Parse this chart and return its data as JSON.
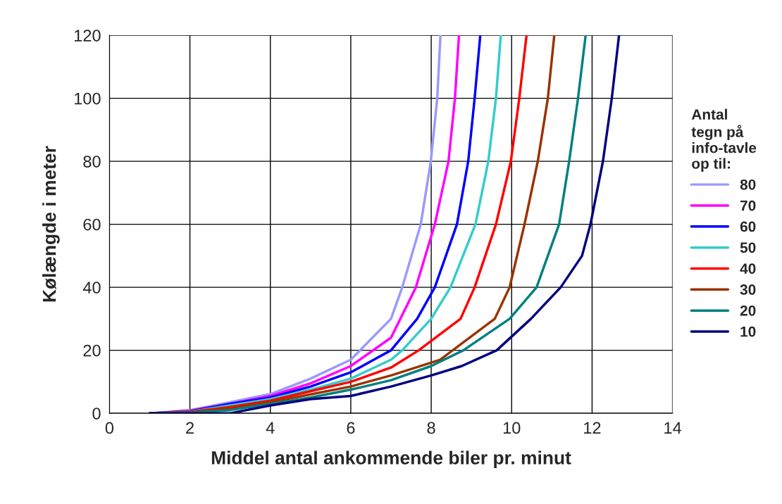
{
  "chart_data": {
    "type": "line",
    "xlabel": "Middel antal ankommende biler pr. minut",
    "ylabel": "Kølængde i meter",
    "legend_title": "Antal\ntegn på\ninfo-tavle\nop til:",
    "legend": "right",
    "xlim": [
      0,
      14
    ],
    "xticks": [
      0,
      2,
      4,
      6,
      8,
      10,
      12,
      14
    ],
    "ylim": [
      0,
      120
    ],
    "yticks": [
      0,
      20,
      40,
      60,
      80,
      100,
      120
    ],
    "grid": true,
    "marker": "none",
    "line_style": "solid",
    "series": [
      {
        "name": "80",
        "color": "#9999ff",
        "x": [
          1,
          2,
          3,
          4,
          5,
          6,
          7,
          7.28,
          7.74,
          7.99,
          8.15,
          8.23
        ],
        "values": [
          0,
          1,
          3.5,
          6.1,
          11,
          17,
          30,
          40,
          60,
          80,
          100,
          120
        ]
      },
      {
        "name": "70",
        "color": "#ff00ff",
        "x": [
          1,
          2,
          3,
          4,
          5,
          6,
          7,
          7.62,
          8.09,
          8.43,
          8.59,
          8.69
        ],
        "values": [
          0,
          0.8,
          3,
          5.5,
          9.5,
          15,
          24,
          40,
          60,
          80,
          100,
          120
        ]
      },
      {
        "name": "60",
        "color": "#0000ff",
        "x": [
          1,
          2,
          3,
          4,
          5,
          6,
          7,
          7.65,
          8.09,
          8.64,
          8.92,
          9.08,
          9.22
        ],
        "values": [
          0,
          0.6,
          3,
          5,
          8.5,
          13,
          20,
          30,
          40,
          60,
          80,
          100,
          120
        ]
      },
      {
        "name": "50",
        "color": "#33cccc",
        "x": [
          1,
          2,
          3,
          4,
          5,
          6,
          7,
          7.28,
          8.0,
          8.48,
          9.1,
          9.42,
          9.61,
          9.73
        ],
        "values": [
          0,
          0.5,
          2.5,
          4.5,
          7.5,
          11,
          17,
          20,
          30,
          40,
          60,
          80,
          100,
          120
        ]
      },
      {
        "name": "40",
        "color": "#ff0000",
        "x": [
          1,
          2,
          3,
          4,
          5,
          6,
          7,
          7.69,
          8.73,
          9.08,
          9.61,
          9.98,
          10.19,
          10.37
        ],
        "values": [
          0,
          0.4,
          2,
          4,
          7,
          10,
          14.5,
          20,
          30,
          40,
          60,
          80,
          100,
          120
        ]
      },
      {
        "name": "30",
        "color": "#993300",
        "x": [
          1,
          2,
          3,
          4,
          5,
          6,
          7,
          8.22,
          9.58,
          9.95,
          10.32,
          10.65,
          10.9,
          11.06
        ],
        "values": [
          0,
          0.3,
          1.5,
          3.5,
          6,
          8.5,
          12,
          17,
          30,
          40,
          60,
          80,
          100,
          120
        ]
      },
      {
        "name": "20",
        "color": "#008080",
        "x": [
          1,
          2,
          3,
          4,
          5,
          6,
          7,
          8,
          8.8,
          9.95,
          10.62,
          11.18,
          11.43,
          11.65,
          11.84
        ],
        "values": [
          0,
          0.2,
          1,
          3,
          5,
          7.5,
          10.5,
          15,
          20,
          30,
          40,
          60,
          80,
          100,
          120
        ]
      },
      {
        "name": "10",
        "color": "#000080",
        "x": [
          1,
          3,
          4,
          5,
          6,
          7,
          8,
          8.76,
          9.63,
          10.48,
          11.22,
          11.75,
          11.96,
          12.27,
          12.49,
          12.67
        ],
        "values": [
          0,
          0,
          2.5,
          4.5,
          5.5,
          8.5,
          12,
          15,
          20,
          30,
          40,
          50,
          60,
          80,
          100,
          120
        ]
      }
    ]
  }
}
